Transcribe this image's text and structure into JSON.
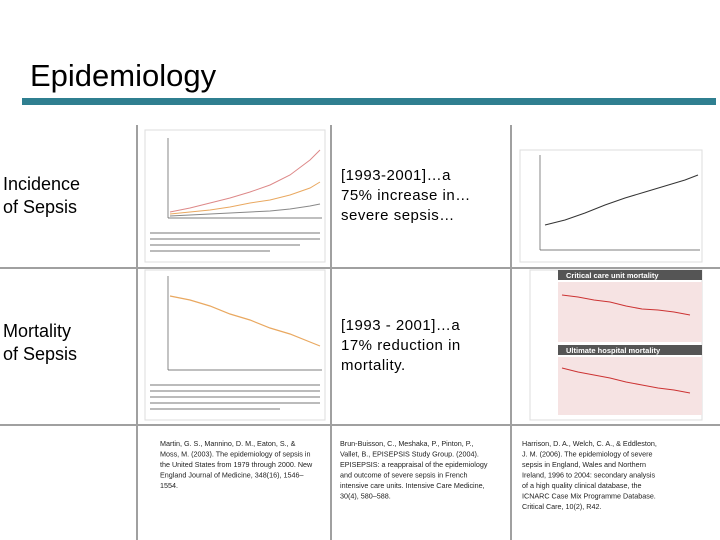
{
  "header": {
    "title": "Epidemiology"
  },
  "rows": [
    {
      "label_lines": [
        "Incidence",
        "of Sepsis"
      ],
      "summary_lines": [
        "[1993-2001]…a",
        "75% increase in…",
        "severe sepsis…"
      ]
    },
    {
      "label_lines": [
        "Mortality",
        "of Sepsis"
      ],
      "summary_lines": [
        "[1993 - 2001]…a",
        "17% reduction in",
        "mortality."
      ]
    }
  ],
  "chart_tags": [
    "Critical care unit mortality",
    "Ultimate hospital mortality"
  ],
  "citations": [
    [
      "Martin, G. S., Mannino, D. M., Eaton, S., &",
      "Moss, M. (2003). The epidemiology of sepsis in",
      "the United States from 1979 through 2000. New",
      "England Journal of Medicine, 348(16), 1546–",
      "1554."
    ],
    [
      "Brun-Buisson, C., Meshaka, P., Pinton, P.,",
      "Vallet, B., EPISEPSIS Study Group. (2004).",
      "EPISEPSIS: a reappraisal of the epidemiology",
      "and outcome of severe sepsis in French",
      "intensive care units. Intensive Care Medicine,",
      "30(4), 580–588."
    ],
    [
      "Harrison, D. A., Welch, C. A., & Eddleston,",
      "J. M. (2006). The epidemiology of severe",
      "sepsis in England, Wales and Northern",
      "Ireland, 1996 to 2004: secondary analysis",
      "of a high quality clinical database, the",
      "ICNARC Case Mix Programme Database.",
      "Critical Care, 10(2), R42."
    ]
  ]
}
